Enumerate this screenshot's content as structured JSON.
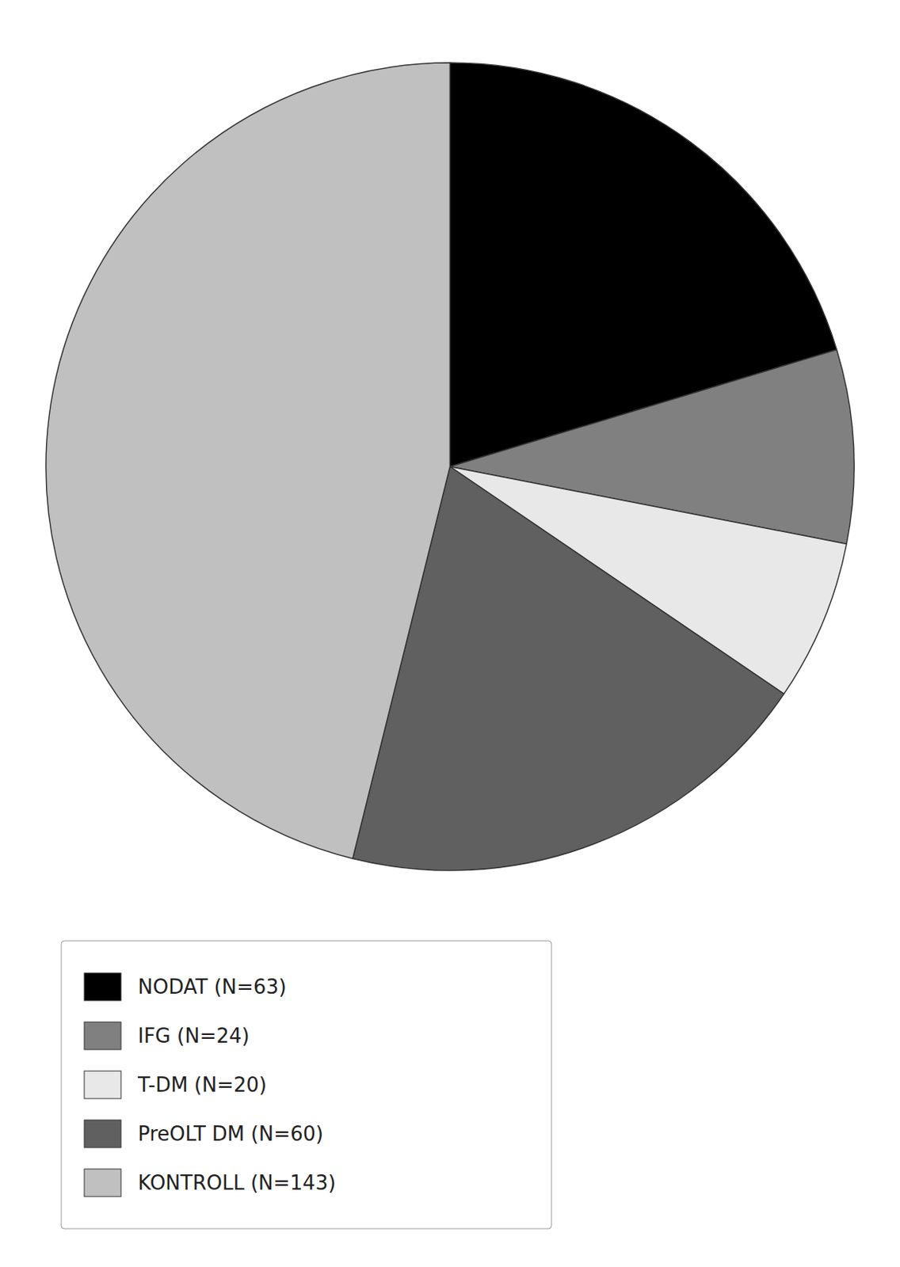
{
  "chart_data": {
    "type": "pie",
    "categories": [
      "NODAT (N=63)",
      "IFG (N=24)",
      "T-DM (N=20)",
      "PreOLT DM (N=60)",
      "KONTROLL (N=143)"
    ],
    "values": [
      63,
      24,
      20,
      60,
      143
    ],
    "colors": [
      "#000000",
      "#808080",
      "#e8e8e8",
      "#606060",
      "#c0c0c0"
    ],
    "legend": "bottom-left"
  }
}
